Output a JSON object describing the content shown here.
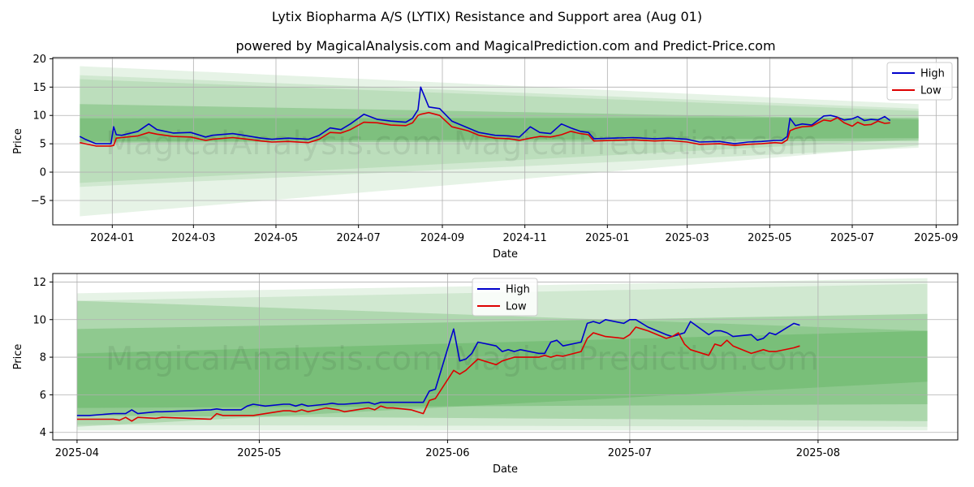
{
  "title": "Lytix Biopharma A/S (LYTIX) Resistance and Support area (Aug 01)",
  "subtitle": "powered by MagicalAnalysis.com and MagicalPrediction.com and Predict-Price.com",
  "watermark": "MagicalAnalysis.com   MagicalPrediction.com",
  "colors": {
    "high": "#0000cc",
    "low": "#dd0000",
    "band": "#2e9b2e"
  },
  "chart_data": [
    {
      "type": "line",
      "xlabel": "Date",
      "ylabel": "Price",
      "ylim": [
        -9.3,
        20.2
      ],
      "xlim": [
        "2023-11-18",
        "2025-09-17"
      ],
      "yticks": [
        {
          "v": 20,
          "label": "20"
        },
        {
          "v": 15,
          "label": "15"
        },
        {
          "v": 10,
          "label": "10"
        },
        {
          "v": 5,
          "label": "5"
        },
        {
          "v": 0,
          "label": "0"
        },
        {
          "v": -5,
          "label": "−5"
        }
      ],
      "xticks": [
        {
          "d": "2024-01-01",
          "label": "2024-01"
        },
        {
          "d": "2024-03-01",
          "label": "2024-03"
        },
        {
          "d": "2024-05-01",
          "label": "2024-05"
        },
        {
          "d": "2024-07-01",
          "label": "2024-07"
        },
        {
          "d": "2024-09-01",
          "label": "2024-09"
        },
        {
          "d": "2024-11-01",
          "label": "2024-11"
        },
        {
          "d": "2025-01-01",
          "label": "2025-01"
        },
        {
          "d": "2025-03-01",
          "label": "2025-03"
        },
        {
          "d": "2025-05-01",
          "label": "2025-05"
        },
        {
          "d": "2025-07-01",
          "label": "2025-07"
        },
        {
          "d": "2025-09-01",
          "label": "2025-09"
        }
      ],
      "legend": "top-right",
      "grid": true,
      "series": [
        {
          "name": "High",
          "x": [
            "2023-12-08",
            "2023-12-12",
            "2023-12-20",
            "2023-12-31",
            "2024-01-02",
            "2024-01-04",
            "2024-01-08",
            "2024-01-20",
            "2024-01-28",
            "2024-02-03",
            "2024-02-15",
            "2024-02-28",
            "2024-03-10",
            "2024-03-15",
            "2024-03-30",
            "2024-04-10",
            "2024-04-20",
            "2024-04-28",
            "2024-05-10",
            "2024-05-25",
            "2024-06-02",
            "2024-06-10",
            "2024-06-18",
            "2024-06-25",
            "2024-07-05",
            "2024-07-15",
            "2024-07-25",
            "2024-08-05",
            "2024-08-10",
            "2024-08-14",
            "2024-08-16",
            "2024-08-22",
            "2024-08-30",
            "2024-09-08",
            "2024-09-20",
            "2024-09-28",
            "2024-10-10",
            "2024-10-20",
            "2024-10-28",
            "2024-11-05",
            "2024-11-12",
            "2024-11-20",
            "2024-11-28",
            "2024-12-05",
            "2024-12-12",
            "2024-12-18",
            "2024-12-22",
            "2025-01-05",
            "2025-01-20",
            "2025-02-05",
            "2025-02-15",
            "2025-03-01",
            "2025-03-10",
            "2025-03-25",
            "2025-04-05",
            "2025-04-15",
            "2025-04-25",
            "2025-05-05",
            "2025-05-10",
            "2025-05-14",
            "2025-05-16",
            "2025-05-20",
            "2025-05-25",
            "2025-06-01",
            "2025-06-10",
            "2025-06-15",
            "2025-06-20",
            "2025-06-25",
            "2025-07-01",
            "2025-07-05",
            "2025-07-10",
            "2025-07-15",
            "2025-07-20",
            "2025-07-25",
            "2025-07-29"
          ],
          "values": [
            6.3,
            5.8,
            5.0,
            5.0,
            8.0,
            6.6,
            6.5,
            7.2,
            8.5,
            7.5,
            6.9,
            7.0,
            6.2,
            6.5,
            6.8,
            6.4,
            6.0,
            5.8,
            6.0,
            5.8,
            6.5,
            7.8,
            7.5,
            8.5,
            10.2,
            9.3,
            9.0,
            8.8,
            9.5,
            11.0,
            15.0,
            11.5,
            11.2,
            9.0,
            7.8,
            7.0,
            6.5,
            6.4,
            6.2,
            8.0,
            7.0,
            6.8,
            8.5,
            7.8,
            7.2,
            7.0,
            5.9,
            6.0,
            6.1,
            5.9,
            6.0,
            5.8,
            5.3,
            5.4,
            5.0,
            5.3,
            5.4,
            5.6,
            5.6,
            6.3,
            9.5,
            8.2,
            8.5,
            8.3,
            9.9,
            10.0,
            9.7,
            9.2,
            9.4,
            9.8,
            9.1,
            9.3,
            9.2,
            9.8,
            9.1
          ]
        },
        {
          "name": "Low",
          "x": [
            "2023-12-08",
            "2023-12-12",
            "2023-12-20",
            "2023-12-31",
            "2024-01-02",
            "2024-01-04",
            "2024-01-08",
            "2024-01-20",
            "2024-01-28",
            "2024-02-03",
            "2024-02-15",
            "2024-02-28",
            "2024-03-10",
            "2024-03-15",
            "2024-03-30",
            "2024-04-10",
            "2024-04-20",
            "2024-04-28",
            "2024-05-10",
            "2024-05-25",
            "2024-06-02",
            "2024-06-10",
            "2024-06-18",
            "2024-06-25",
            "2024-07-05",
            "2024-07-15",
            "2024-07-25",
            "2024-08-05",
            "2024-08-10",
            "2024-08-14",
            "2024-08-16",
            "2024-08-22",
            "2024-08-30",
            "2024-09-08",
            "2024-09-20",
            "2024-09-28",
            "2024-10-10",
            "2024-10-20",
            "2024-10-28",
            "2024-11-05",
            "2024-11-12",
            "2024-11-20",
            "2024-11-28",
            "2024-12-05",
            "2024-12-12",
            "2024-12-18",
            "2024-12-22",
            "2025-01-05",
            "2025-01-20",
            "2025-02-05",
            "2025-02-15",
            "2025-03-01",
            "2025-03-10",
            "2025-03-25",
            "2025-04-05",
            "2025-04-15",
            "2025-04-25",
            "2025-05-05",
            "2025-05-10",
            "2025-05-14",
            "2025-05-16",
            "2025-05-20",
            "2025-05-25",
            "2025-06-01",
            "2025-06-10",
            "2025-06-15",
            "2025-06-20",
            "2025-06-25",
            "2025-07-01",
            "2025-07-05",
            "2025-07-10",
            "2025-07-15",
            "2025-07-20",
            "2025-07-25",
            "2025-07-29"
          ],
          "values": [
            5.2,
            5.0,
            4.6,
            4.6,
            4.7,
            6.0,
            6.1,
            6.4,
            7.0,
            6.7,
            6.3,
            6.2,
            5.6,
            5.8,
            6.1,
            5.8,
            5.5,
            5.3,
            5.4,
            5.2,
            5.8,
            7.0,
            6.9,
            7.5,
            8.8,
            8.7,
            8.3,
            8.2,
            8.7,
            10.0,
            10.2,
            10.5,
            10.0,
            8.0,
            7.3,
            6.5,
            6.0,
            5.9,
            5.6,
            6.0,
            6.3,
            6.2,
            6.6,
            7.2,
            6.8,
            6.6,
            5.5,
            5.6,
            5.7,
            5.5,
            5.6,
            5.3,
            4.9,
            5.0,
            4.7,
            4.9,
            5.0,
            5.2,
            5.1,
            5.7,
            7.3,
            7.7,
            8.0,
            8.1,
            9.2,
            9.0,
            9.6,
            8.7,
            8.1,
            8.8,
            8.3,
            8.4,
            9.0,
            8.6,
            8.7
          ]
        }
      ],
      "bands": [
        {
          "start": "2023-12-08",
          "end": "2025-08-19",
          "top": [
            18.7,
            12.0
          ],
          "bottom": [
            -1.9,
            5.8
          ],
          "opacity": 0.12
        },
        {
          "start": "2023-12-08",
          "end": "2025-08-19",
          "top": [
            17.1,
            11.2
          ],
          "bottom": [
            -2.6,
            4.3
          ],
          "opacity": 0.12
        },
        {
          "start": "2023-12-08",
          "end": "2025-08-19",
          "top": [
            16.4,
            10.8
          ],
          "bottom": [
            -7.8,
            4.7
          ],
          "opacity": 0.12
        },
        {
          "start": "2023-12-08",
          "end": "2025-08-19",
          "top": [
            12.0,
            9.3
          ],
          "bottom": [
            5.2,
            5.5
          ],
          "opacity": 0.25
        },
        {
          "start": "2023-12-08",
          "end": "2025-08-19",
          "top": [
            9.5,
            9.6
          ],
          "bottom": [
            5.4,
            6.0
          ],
          "opacity": 0.25
        }
      ]
    },
    {
      "type": "line",
      "xlabel": "Date",
      "ylabel": "Price",
      "ylim": [
        3.6,
        12.45
      ],
      "xlim": [
        "2025-03-28",
        "2025-08-24"
      ],
      "yticks": [
        {
          "v": 12,
          "label": "12"
        },
        {
          "v": 10,
          "label": "10"
        },
        {
          "v": 8,
          "label": "8"
        },
        {
          "v": 6,
          "label": "6"
        },
        {
          "v": 4,
          "label": "4"
        }
      ],
      "xticks": [
        {
          "d": "2025-04-01",
          "label": "2025-04"
        },
        {
          "d": "2025-05-01",
          "label": "2025-05"
        },
        {
          "d": "2025-06-01",
          "label": "2025-06"
        },
        {
          "d": "2025-07-01",
          "label": "2025-07"
        },
        {
          "d": "2025-08-01",
          "label": "2025-08"
        }
      ],
      "legend": "top-center",
      "grid": true,
      "series": [
        {
          "name": "High",
          "x": [
            "2025-04-01",
            "2025-04-03",
            "2025-04-07",
            "2025-04-08",
            "2025-04-09",
            "2025-04-10",
            "2025-04-11",
            "2025-04-14",
            "2025-04-15",
            "2025-04-23",
            "2025-04-24",
            "2025-04-25",
            "2025-04-28",
            "2025-04-29",
            "2025-04-30",
            "2025-05-02",
            "2025-05-05",
            "2025-05-06",
            "2025-05-07",
            "2025-05-08",
            "2025-05-09",
            "2025-05-12",
            "2025-05-13",
            "2025-05-14",
            "2025-05-15",
            "2025-05-19",
            "2025-05-20",
            "2025-05-21",
            "2025-05-22",
            "2025-05-23",
            "2025-05-26",
            "2025-05-27",
            "2025-05-28",
            "2025-05-29",
            "2025-05-30",
            "2025-06-02",
            "2025-06-03",
            "2025-06-04",
            "2025-06-05",
            "2025-06-06",
            "2025-06-09",
            "2025-06-10",
            "2025-06-11",
            "2025-06-12",
            "2025-06-13",
            "2025-06-16",
            "2025-06-17",
            "2025-06-18",
            "2025-06-19",
            "2025-06-20",
            "2025-06-23",
            "2025-06-24",
            "2025-06-25",
            "2025-06-26",
            "2025-06-27",
            "2025-06-30",
            "2025-07-01",
            "2025-07-02",
            "2025-07-03",
            "2025-07-04",
            "2025-07-07",
            "2025-07-08",
            "2025-07-09",
            "2025-07-10",
            "2025-07-11",
            "2025-07-14",
            "2025-07-15",
            "2025-07-16",
            "2025-07-17",
            "2025-07-18",
            "2025-07-21",
            "2025-07-22",
            "2025-07-23",
            "2025-07-24",
            "2025-07-25",
            "2025-07-28",
            "2025-07-29"
          ],
          "values": [
            4.9,
            4.9,
            5.0,
            5.0,
            5.0,
            5.2,
            5.0,
            5.1,
            5.1,
            5.2,
            5.25,
            5.2,
            5.2,
            5.4,
            5.5,
            5.4,
            5.5,
            5.5,
            5.4,
            5.5,
            5.4,
            5.5,
            5.55,
            5.5,
            5.5,
            5.6,
            5.5,
            5.6,
            5.6,
            5.6,
            5.6,
            5.6,
            5.6,
            6.2,
            6.3,
            9.5,
            7.8,
            7.9,
            8.2,
            8.8,
            8.6,
            8.3,
            8.4,
            8.3,
            8.4,
            8.2,
            8.2,
            8.8,
            8.9,
            8.6,
            8.8,
            9.8,
            9.9,
            9.8,
            10.0,
            9.8,
            10.0,
            10.0,
            9.8,
            9.6,
            9.2,
            9.1,
            9.2,
            9.3,
            9.9,
            9.2,
            9.4,
            9.4,
            9.3,
            9.1,
            9.2,
            8.9,
            9.0,
            9.3,
            9.2,
            9.8,
            9.7
          ]
        },
        {
          "name": "Low",
          "x": [
            "2025-04-01",
            "2025-04-03",
            "2025-04-07",
            "2025-04-08",
            "2025-04-09",
            "2025-04-10",
            "2025-04-11",
            "2025-04-14",
            "2025-04-15",
            "2025-04-23",
            "2025-04-24",
            "2025-04-25",
            "2025-04-28",
            "2025-04-29",
            "2025-04-30",
            "2025-05-02",
            "2025-05-05",
            "2025-05-06",
            "2025-05-07",
            "2025-05-08",
            "2025-05-09",
            "2025-05-12",
            "2025-05-13",
            "2025-05-14",
            "2025-05-15",
            "2025-05-19",
            "2025-05-20",
            "2025-05-21",
            "2025-05-22",
            "2025-05-23",
            "2025-05-26",
            "2025-05-27",
            "2025-05-28",
            "2025-05-29",
            "2025-05-30",
            "2025-06-02",
            "2025-06-03",
            "2025-06-04",
            "2025-06-05",
            "2025-06-06",
            "2025-06-09",
            "2025-06-10",
            "2025-06-11",
            "2025-06-12",
            "2025-06-13",
            "2025-06-16",
            "2025-06-17",
            "2025-06-18",
            "2025-06-19",
            "2025-06-20",
            "2025-06-23",
            "2025-06-24",
            "2025-06-25",
            "2025-06-26",
            "2025-06-27",
            "2025-06-30",
            "2025-07-01",
            "2025-07-02",
            "2025-07-03",
            "2025-07-04",
            "2025-07-07",
            "2025-07-08",
            "2025-07-09",
            "2025-07-10",
            "2025-07-11",
            "2025-07-14",
            "2025-07-15",
            "2025-07-16",
            "2025-07-17",
            "2025-07-18",
            "2025-07-21",
            "2025-07-22",
            "2025-07-23",
            "2025-07-24",
            "2025-07-25",
            "2025-07-28",
            "2025-07-29"
          ],
          "values": [
            4.7,
            4.7,
            4.7,
            4.65,
            4.8,
            4.6,
            4.8,
            4.75,
            4.8,
            4.7,
            5.0,
            4.9,
            4.9,
            4.9,
            4.9,
            5.0,
            5.15,
            5.15,
            5.1,
            5.2,
            5.1,
            5.3,
            5.25,
            5.2,
            5.1,
            5.3,
            5.2,
            5.4,
            5.3,
            5.3,
            5.2,
            5.1,
            5.0,
            5.7,
            5.8,
            7.3,
            7.1,
            7.3,
            7.6,
            7.9,
            7.6,
            7.8,
            7.9,
            8.0,
            8.0,
            8.0,
            8.1,
            8.0,
            8.1,
            8.05,
            8.3,
            9.0,
            9.3,
            9.2,
            9.1,
            9.0,
            9.2,
            9.6,
            9.5,
            9.4,
            9.0,
            9.1,
            9.3,
            8.7,
            8.4,
            8.1,
            8.7,
            8.6,
            8.9,
            8.6,
            8.2,
            8.3,
            8.4,
            8.3,
            8.3,
            8.5,
            8.6
          ]
        }
      ],
      "bands": [
        {
          "start": "2025-04-01",
          "end": "2025-08-19",
          "top": [
            11.4,
            12.2
          ],
          "bottom": [
            4.1,
            4.1
          ],
          "opacity": 0.12
        },
        {
          "start": "2025-04-01",
          "end": "2025-08-19",
          "top": [
            11.0,
            11.9
          ],
          "bottom": [
            4.4,
            4.3
          ],
          "opacity": 0.12
        },
        {
          "start": "2025-04-01",
          "end": "2025-08-19",
          "top": [
            11.0,
            9.4
          ],
          "bottom": [
            4.3,
            6.7
          ],
          "opacity": 0.2
        },
        {
          "start": "2025-04-01",
          "end": "2025-08-19",
          "top": [
            9.5,
            10.3
          ],
          "bottom": [
            5.3,
            5.5
          ],
          "opacity": 0.25
        },
        {
          "start": "2025-04-01",
          "end": "2025-08-19",
          "top": [
            8.2,
            9.4
          ],
          "bottom": [
            4.9,
            4.6
          ],
          "opacity": 0.22
        }
      ]
    }
  ]
}
